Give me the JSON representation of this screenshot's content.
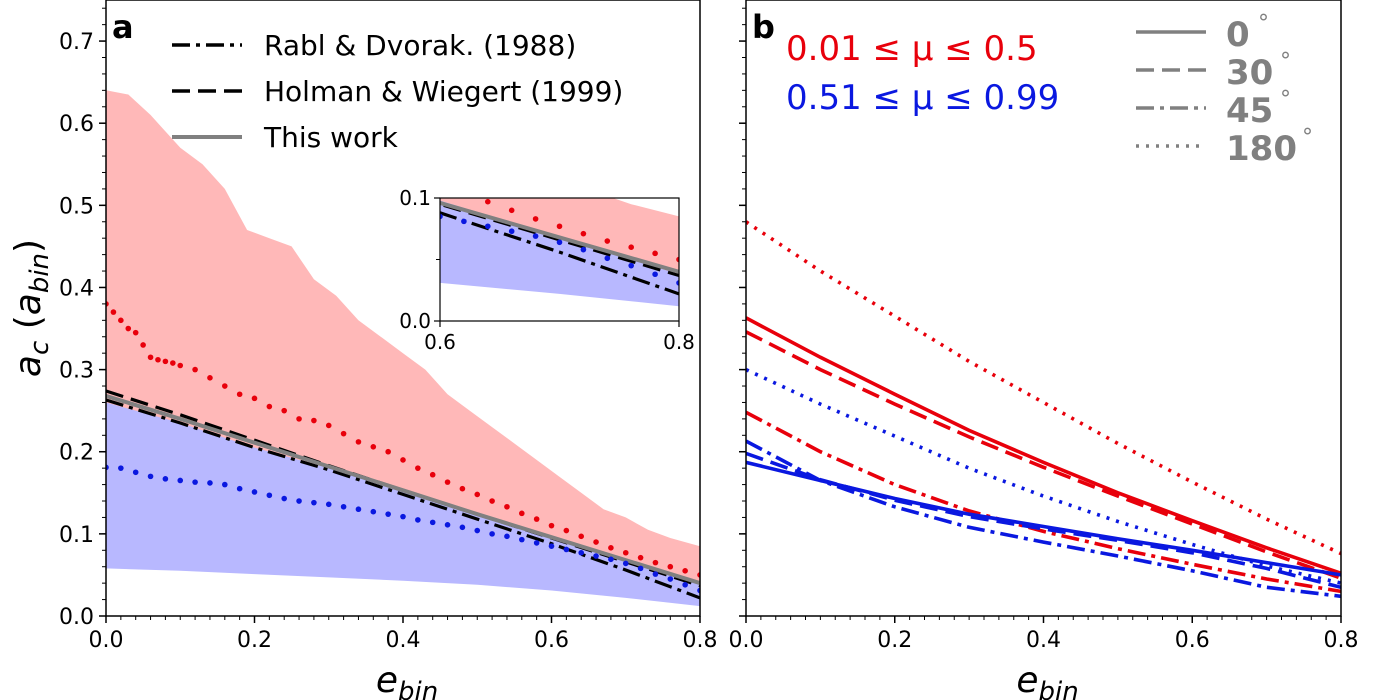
{
  "colors": {
    "red": "#e8000b",
    "blue": "#0a18e0",
    "grey": "#808080",
    "black": "#000000",
    "red_fill": "#ffb8b8",
    "blue_fill": "#b8b8ff"
  },
  "chart_data": [
    {
      "panel": "a",
      "type": "line",
      "panel_label": "a",
      "xlabel": "e_bin",
      "ylabel": "a_c (a_bin)",
      "xlim": [
        0.0,
        0.8
      ],
      "ylim": [
        0.0,
        0.75
      ],
      "xticks": [
        "0.0",
        "0.2",
        "0.4",
        "0.6",
        "0.8"
      ],
      "yticks": [
        "0.0",
        "0.1",
        "0.2",
        "0.3",
        "0.4",
        "0.5",
        "0.6",
        "0.7"
      ],
      "legend": [
        {
          "label": "Rabl & Dvorak. (1988)",
          "style": "dashdot",
          "color": "#000000"
        },
        {
          "label": "Holman & Wiegert (1999)",
          "style": "dashed",
          "color": "#000000"
        },
        {
          "label": "This work",
          "style": "solid",
          "color": "#808080"
        }
      ],
      "bands": [
        {
          "color": "red_fill",
          "x": [
            0.0,
            0.03,
            0.06,
            0.08,
            0.1,
            0.13,
            0.16,
            0.19,
            0.22,
            0.25,
            0.28,
            0.31,
            0.34,
            0.37,
            0.4,
            0.43,
            0.46,
            0.49,
            0.52,
            0.55,
            0.58,
            0.61,
            0.64,
            0.67,
            0.7,
            0.73,
            0.76,
            0.8
          ],
          "upper": [
            0.64,
            0.635,
            0.61,
            0.59,
            0.57,
            0.55,
            0.52,
            0.47,
            0.46,
            0.45,
            0.41,
            0.39,
            0.36,
            0.34,
            0.32,
            0.3,
            0.27,
            0.25,
            0.23,
            0.21,
            0.19,
            0.17,
            0.15,
            0.13,
            0.12,
            0.105,
            0.095,
            0.085
          ],
          "lower": [
            0.18,
            0.179,
            0.176,
            0.173,
            0.17,
            0.165,
            0.16,
            0.155,
            0.15,
            0.145,
            0.14,
            0.135,
            0.13,
            0.125,
            0.12,
            0.114,
            0.108,
            0.101,
            0.094,
            0.087,
            0.08,
            0.074,
            0.068,
            0.062,
            0.056,
            0.05,
            0.045,
            0.038
          ]
        },
        {
          "color": "blue_fill",
          "x": [
            0.0,
            0.1,
            0.2,
            0.3,
            0.4,
            0.5,
            0.6,
            0.7,
            0.8
          ],
          "upper": [
            0.26,
            0.235,
            0.205,
            0.18,
            0.152,
            0.125,
            0.098,
            0.068,
            0.038
          ],
          "lower": [
            0.058,
            0.055,
            0.051,
            0.047,
            0.043,
            0.038,
            0.031,
            0.022,
            0.012
          ]
        }
      ],
      "series": [
        {
          "name": "Rabl & Dvorak. (1988)",
          "style": "dashdot",
          "color": "#000000",
          "x": [
            0.0,
            0.1,
            0.2,
            0.3,
            0.4,
            0.5,
            0.6,
            0.7,
            0.8
          ],
          "y": [
            0.263,
            0.235,
            0.205,
            0.178,
            0.148,
            0.118,
            0.088,
            0.056,
            0.022
          ]
        },
        {
          "name": "Holman & Wiegert (1999)",
          "style": "dashed",
          "color": "#000000",
          "x": [
            0.0,
            0.1,
            0.2,
            0.3,
            0.4,
            0.5,
            0.6,
            0.7,
            0.8
          ],
          "y": [
            0.274,
            0.245,
            0.214,
            0.183,
            0.153,
            0.124,
            0.095,
            0.066,
            0.037
          ]
        },
        {
          "name": "This work",
          "style": "solid",
          "color": "#808080",
          "x": [
            0.0,
            0.1,
            0.2,
            0.3,
            0.4,
            0.5,
            0.6,
            0.7,
            0.8
          ],
          "y": [
            0.268,
            0.24,
            0.211,
            0.182,
            0.153,
            0.124,
            0.096,
            0.068,
            0.04
          ]
        },
        {
          "style": "dotted-marker",
          "color": "#e8000b",
          "x": [
            0.0,
            0.01,
            0.02,
            0.03,
            0.04,
            0.05,
            0.06,
            0.07,
            0.08,
            0.09,
            0.1,
            0.12,
            0.14,
            0.16,
            0.18,
            0.2,
            0.22,
            0.24,
            0.26,
            0.28,
            0.3,
            0.32,
            0.34,
            0.36,
            0.38,
            0.4,
            0.42,
            0.44,
            0.46,
            0.48,
            0.5,
            0.52,
            0.54,
            0.56,
            0.58,
            0.6,
            0.62,
            0.64,
            0.66,
            0.68,
            0.7,
            0.72,
            0.74,
            0.76,
            0.78,
            0.8
          ],
          "y": [
            0.38,
            0.37,
            0.36,
            0.35,
            0.345,
            0.33,
            0.315,
            0.312,
            0.31,
            0.308,
            0.305,
            0.3,
            0.29,
            0.28,
            0.27,
            0.265,
            0.255,
            0.25,
            0.24,
            0.238,
            0.232,
            0.222,
            0.212,
            0.206,
            0.2,
            0.19,
            0.18,
            0.172,
            0.163,
            0.155,
            0.148,
            0.14,
            0.133,
            0.125,
            0.118,
            0.11,
            0.104,
            0.097,
            0.09,
            0.083,
            0.077,
            0.071,
            0.065,
            0.06,
            0.055,
            0.05
          ]
        },
        {
          "style": "dotted-marker",
          "color": "#0a18e0",
          "x": [
            0.0,
            0.02,
            0.04,
            0.06,
            0.08,
            0.1,
            0.12,
            0.14,
            0.16,
            0.18,
            0.2,
            0.22,
            0.24,
            0.26,
            0.28,
            0.3,
            0.32,
            0.34,
            0.36,
            0.38,
            0.4,
            0.42,
            0.44,
            0.46,
            0.48,
            0.5,
            0.52,
            0.54,
            0.56,
            0.58,
            0.6,
            0.62,
            0.64,
            0.66,
            0.68,
            0.7,
            0.72,
            0.74,
            0.76,
            0.78,
            0.8
          ],
          "y": [
            0.181,
            0.18,
            0.175,
            0.17,
            0.167,
            0.165,
            0.163,
            0.162,
            0.16,
            0.155,
            0.151,
            0.147,
            0.143,
            0.14,
            0.138,
            0.136,
            0.133,
            0.13,
            0.127,
            0.124,
            0.121,
            0.117,
            0.114,
            0.111,
            0.108,
            0.104,
            0.1,
            0.097,
            0.093,
            0.089,
            0.085,
            0.081,
            0.077,
            0.073,
            0.069,
            0.064,
            0.058,
            0.051,
            0.045,
            0.038,
            0.031
          ]
        }
      ],
      "inset": {
        "xlim": [
          0.6,
          0.8
        ],
        "ylim": [
          0.0,
          0.1
        ],
        "xticks": [
          "0.6",
          "0.8"
        ],
        "yticks": [
          "0.0",
          "0.1"
        ]
      }
    },
    {
      "panel": "b",
      "type": "line",
      "panel_label": "b",
      "xlabel": "e_bin",
      "xlim": [
        0.0,
        0.8
      ],
      "ylim": [
        0.0,
        0.75
      ],
      "xticks": [
        "0.0",
        "0.2",
        "0.4",
        "0.6",
        "0.8"
      ],
      "mu_labels": [
        {
          "text": "0.01 ≤ μ ≤ 0.5",
          "color": "#e8000b"
        },
        {
          "text": "0.51 ≤ μ ≤ 0.99",
          "color": "#0a18e0"
        }
      ],
      "angle_legend": [
        {
          "label": "0",
          "unit": "°",
          "style": "solid"
        },
        {
          "label": "30",
          "unit": "°",
          "style": "dashed"
        },
        {
          "label": "45",
          "unit": "°",
          "style": "dashdot"
        },
        {
          "label": "180",
          "unit": "°",
          "style": "dotted"
        }
      ],
      "series": [
        {
          "color": "#e8000b",
          "style": "solid",
          "x": [
            0.0,
            0.1,
            0.2,
            0.3,
            0.4,
            0.5,
            0.6,
            0.7,
            0.8
          ],
          "y": [
            0.363,
            0.315,
            0.27,
            0.226,
            0.187,
            0.15,
            0.116,
            0.083,
            0.052
          ]
        },
        {
          "color": "#e8000b",
          "style": "dashed",
          "x": [
            0.0,
            0.1,
            0.2,
            0.3,
            0.4,
            0.5,
            0.6,
            0.7,
            0.8
          ],
          "y": [
            0.346,
            0.3,
            0.258,
            0.218,
            0.181,
            0.146,
            0.112,
            0.078,
            0.046
          ]
        },
        {
          "color": "#e8000b",
          "style": "dashdot",
          "x": [
            0.0,
            0.1,
            0.2,
            0.3,
            0.4,
            0.5,
            0.6,
            0.7,
            0.8
          ],
          "y": [
            0.248,
            0.2,
            0.16,
            0.128,
            0.103,
            0.082,
            0.063,
            0.045,
            0.03
          ]
        },
        {
          "color": "#e8000b",
          "style": "dotted",
          "x": [
            0.0,
            0.1,
            0.2,
            0.3,
            0.4,
            0.5,
            0.6,
            0.7,
            0.8
          ],
          "y": [
            0.48,
            0.42,
            0.365,
            0.31,
            0.26,
            0.21,
            0.163,
            0.118,
            0.076
          ]
        },
        {
          "color": "#0a18e0",
          "style": "solid",
          "x": [
            0.0,
            0.1,
            0.2,
            0.3,
            0.4,
            0.5,
            0.6,
            0.7,
            0.8
          ],
          "y": [
            0.187,
            0.165,
            0.143,
            0.124,
            0.109,
            0.094,
            0.08,
            0.065,
            0.05
          ]
        },
        {
          "color": "#0a18e0",
          "style": "dashed",
          "x": [
            0.0,
            0.1,
            0.2,
            0.3,
            0.4,
            0.5,
            0.6,
            0.7,
            0.8
          ],
          "y": [
            0.198,
            0.166,
            0.141,
            0.121,
            0.106,
            0.092,
            0.077,
            0.058,
            0.035
          ]
        },
        {
          "color": "#0a18e0",
          "style": "dashdot",
          "x": [
            0.0,
            0.1,
            0.2,
            0.3,
            0.4,
            0.5,
            0.6,
            0.7,
            0.8
          ],
          "y": [
            0.213,
            0.165,
            0.133,
            0.108,
            0.09,
            0.073,
            0.055,
            0.035,
            0.024
          ]
        },
        {
          "color": "#0a18e0",
          "style": "dotted",
          "x": [
            0.0,
            0.1,
            0.2,
            0.3,
            0.4,
            0.5,
            0.6,
            0.7,
            0.8
          ],
          "y": [
            0.3,
            0.258,
            0.219,
            0.18,
            0.146,
            0.115,
            0.087,
            0.061,
            0.04
          ]
        }
      ]
    }
  ]
}
